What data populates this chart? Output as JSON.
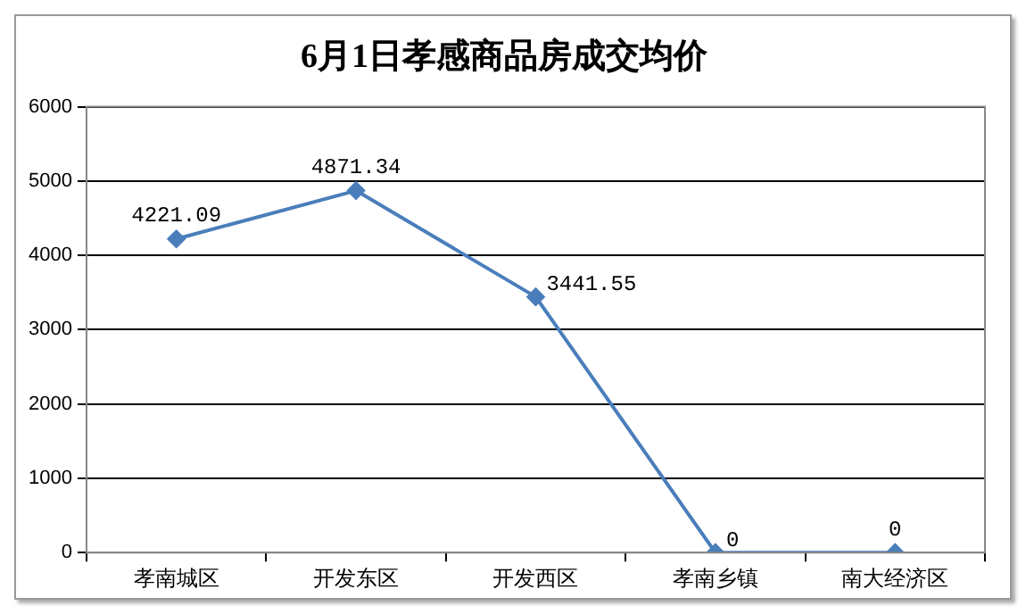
{
  "chart_data": {
    "type": "line",
    "title": "6月1日孝感商品房成交均价",
    "categories": [
      "孝南城区",
      "开发东区",
      "开发西区",
      "孝南乡镇",
      "南大经济区"
    ],
    "values": [
      4221.09,
      4871.34,
      3441.55,
      0,
      0
    ],
    "color": "#4a7ebb",
    "marker": "diamond",
    "data_labels": true,
    "ylim": [
      0,
      6000
    ],
    "yticks": [
      0,
      1000,
      2000,
      3000,
      4000,
      5000,
      6000
    ],
    "grid": "y",
    "legend": false
  }
}
